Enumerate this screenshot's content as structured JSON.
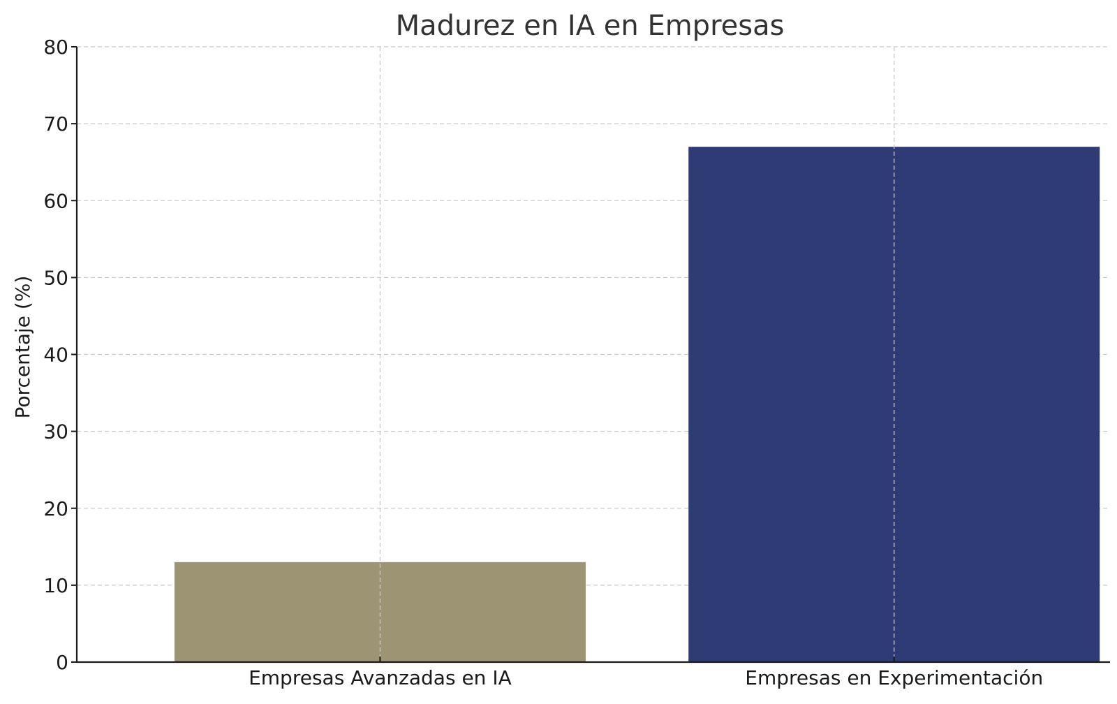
{
  "chart_data": {
    "type": "bar",
    "title": "Madurez en IA en Empresas",
    "xlabel": "",
    "ylabel": "Porcentaje (%)",
    "categories": [
      "Empresas Avanzadas en IA",
      "Empresas en Experimentación"
    ],
    "values": [
      13,
      67
    ],
    "colors": [
      "#9c9472",
      "#2e3b74"
    ],
    "ylim": [
      0,
      80
    ],
    "yticks": [
      0,
      10,
      20,
      30,
      40,
      50,
      60,
      70,
      80
    ],
    "grid": true
  }
}
